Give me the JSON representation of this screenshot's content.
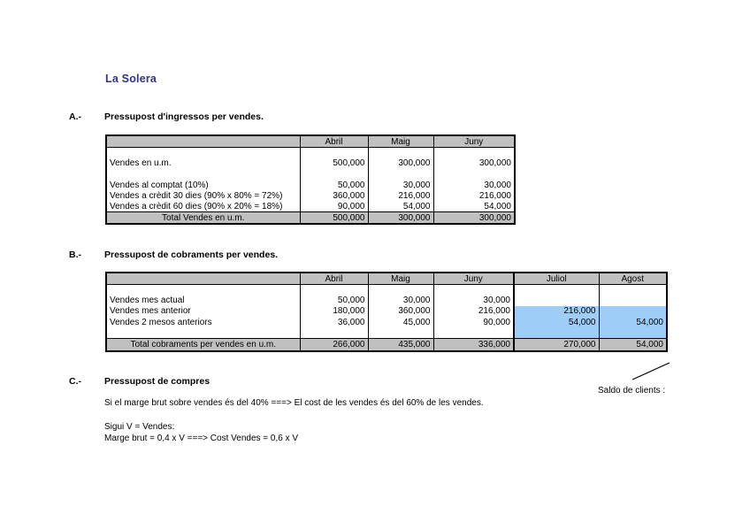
{
  "title": "La Solera",
  "sections": {
    "a": {
      "index": "A.-",
      "heading": "Pressupost d'ingressos per vendes."
    },
    "b": {
      "index": "B.-",
      "heading": "Pressupost de cobraments per vendes."
    },
    "c": {
      "index": "C.-",
      "heading": "Pressupost de compres"
    }
  },
  "annotation": {
    "saldo_label": "Saldo de clients :"
  },
  "notes": [
    "Si el marge brut sobre vendes és del 40% ===> El cost de les vendes és del 60% de les vendes.",
    "Sigui V = Vendes:",
    "Marge brut = 0,4 x V ===> Cost Vendes = 0,6 x V"
  ],
  "colors": {
    "header_fill": "#c0c0c0",
    "total_fill": "#c0c0c0",
    "highlight_fill": "#9ecdf8",
    "title_color": "#2e3192"
  },
  "tables": {
    "ingressos": {
      "columns": [
        "Abril",
        "Maig",
        "Juny"
      ],
      "body": [
        {
          "label": "",
          "values": [
            "",
            "",
            ""
          ]
        },
        {
          "label": "Vendes en u.m.",
          "values": [
            "500,000",
            "300,000",
            "300,000"
          ]
        },
        {
          "label": "",
          "values": [
            "",
            "",
            ""
          ]
        },
        {
          "label": "Vendes al comptat (10%)",
          "values": [
            "50,000",
            "30,000",
            "30,000"
          ]
        },
        {
          "label": "Vendes a crèdit 30 dies (90% x 80% = 72%)",
          "values": [
            "360,000",
            "216,000",
            "216,000"
          ]
        },
        {
          "label": "Vendes a crèdit 60 dies (90% x 20% = 18%)",
          "values": [
            "90,000",
            "54,000",
            "54,000"
          ]
        }
      ],
      "total": {
        "label": "Total Vendes en u.m.",
        "values": [
          "500,000",
          "300,000",
          "300,000"
        ]
      }
    },
    "cobraments": {
      "columns": [
        "Abril",
        "Maig",
        "Juny",
        "Juliol",
        "Agost"
      ],
      "body": [
        {
          "label": "",
          "values": [
            "",
            "",
            "",
            "",
            ""
          ]
        },
        {
          "label": "Vendes mes actual",
          "values": [
            "50,000",
            "30,000",
            "30,000",
            "",
            ""
          ]
        },
        {
          "label": "Vendes mes anterior",
          "values": [
            "180,000",
            "360,000",
            "216,000",
            "216,000",
            ""
          ],
          "highlight_from": 3
        },
        {
          "label": "Vendes 2 mesos anteriors",
          "values": [
            "36,000",
            "45,000",
            "90,000",
            "54,000",
            "54,000"
          ],
          "highlight_from": 3
        },
        {
          "label": "",
          "values": [
            "",
            "",
            "",
            "",
            ""
          ],
          "highlight_from": 3
        }
      ],
      "total": {
        "label": "Total cobraments per vendes en u.m.",
        "values": [
          "266,000",
          "435,000",
          "336,000",
          "270,000",
          "54,000"
        ],
        "highlight_from": 3
      }
    }
  }
}
